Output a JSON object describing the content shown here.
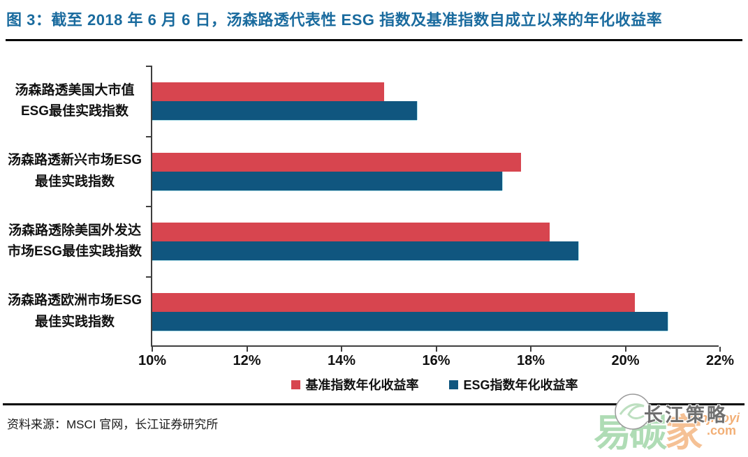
{
  "header": {
    "title": "图 3：截至 2018 年 6 月 6 日，汤森路透代表性 ESG 指数及基准指数自成立以来的年化收益率"
  },
  "chart_data": {
    "type": "bar",
    "orientation": "horizontal",
    "title": "截至 2018 年 6 月 6 日，汤森路透代表性 ESG 指数及基准指数自成立以来的年化收益率",
    "categories": [
      "汤森路透美国大市值ESG最佳实践指数",
      "汤森路透新兴市场ESG最佳实践指数",
      "汤森路透除美国外发达市场ESG最佳实践指数",
      "汤森路透欧洲市场ESG最佳实践指数"
    ],
    "series": [
      {
        "name": "基准指数年化收益率",
        "color": "#d7454f",
        "values": [
          14.9,
          17.8,
          18.4,
          20.2
        ]
      },
      {
        "name": "ESG指数年化收益率",
        "color": "#10567f",
        "values": [
          15.6,
          17.4,
          19.0,
          20.9
        ]
      }
    ],
    "x_ticks": [
      "10%",
      "12%",
      "14%",
      "16%",
      "18%",
      "20%",
      "22%"
    ],
    "xlim": [
      10,
      22
    ],
    "xlabel": "",
    "ylabel": "",
    "grid": false,
    "legend_position": "bottom"
  },
  "footer": {
    "source": "资料来源：MSCI 官网，长江证券研究所"
  },
  "watermark": {
    "brand_green": "易碳",
    "brand_orange": "家",
    "domain": "tanjiaoyi",
    "domain_tld": ".com",
    "overlay": "长江策略"
  }
}
